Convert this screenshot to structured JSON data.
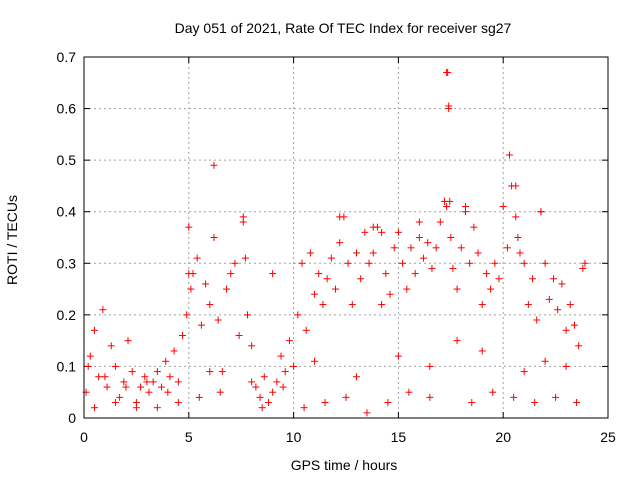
{
  "chart_data": {
    "type": "scatter",
    "title": "Day 051 of 2021, Rate Of TEC Index for receiver sg27",
    "xlabel": "GPS time / hours",
    "ylabel": "ROTI / TECUs",
    "xlim": [
      0,
      25
    ],
    "ylim": [
      0,
      0.7
    ],
    "xticks": [
      "0",
      "5",
      "10",
      "15",
      "20",
      "25"
    ],
    "yticks": [
      "0",
      "0.1",
      "0.2",
      "0.3",
      "0.4",
      "0.5",
      "0.6",
      "0.7"
    ],
    "grid": true,
    "marker": "plus",
    "color": "#ff0000",
    "series": [
      {
        "name": "ROTI",
        "x": [
          0.1,
          0.3,
          0.5,
          0.7,
          0.9,
          1.1,
          1.3,
          1.5,
          1.7,
          1.9,
          2.1,
          2.3,
          2.5,
          2.7,
          2.9,
          3.1,
          3.3,
          3.5,
          3.7,
          3.9,
          4.1,
          4.3,
          4.5,
          4.7,
          4.9,
          5.0,
          5.1,
          5.2,
          5.4,
          5.6,
          5.8,
          6.0,
          6.2,
          6.4,
          6.6,
          6.8,
          7.0,
          7.2,
          7.4,
          7.6,
          7.7,
          7.8,
          8.0,
          8.2,
          8.4,
          8.6,
          8.8,
          9.0,
          9.2,
          9.4,
          9.6,
          9.8,
          10.0,
          10.2,
          10.4,
          10.6,
          10.8,
          11.0,
          11.2,
          11.4,
          11.6,
          11.8,
          12.0,
          12.2,
          12.4,
          12.6,
          12.8,
          13.0,
          13.2,
          13.4,
          13.6,
          13.8,
          14.0,
          14.2,
          14.4,
          14.6,
          14.8,
          15.0,
          15.2,
          15.4,
          15.6,
          15.8,
          16.0,
          16.2,
          16.4,
          16.6,
          16.8,
          17.0,
          17.2,
          17.3,
          17.4,
          17.5,
          17.6,
          17.8,
          18.0,
          18.2,
          18.4,
          18.6,
          18.8,
          19.0,
          19.2,
          19.4,
          19.6,
          19.8,
          20.0,
          20.2,
          20.4,
          20.6,
          20.8,
          21.0,
          21.2,
          21.4,
          21.6,
          21.8,
          22.0,
          22.2,
          22.4,
          22.6,
          22.8,
          23.0,
          23.2,
          23.4,
          23.6,
          23.8,
          5.0,
          6.2,
          7.6,
          9.0,
          12.2,
          13.8,
          14.2,
          16.0,
          17.3,
          17.35,
          17.4,
          17.45,
          18.2,
          20.3,
          20.6,
          20.7,
          21.8,
          23.9,
          0.5,
          1.5,
          2.5,
          3.5,
          4.5,
          5.5,
          6.5,
          8.5,
          10.5,
          11.5,
          12.5,
          13.5,
          14.5,
          15.5,
          16.5,
          18.5,
          19.5,
          20.5,
          21.5,
          22.5,
          23.5,
          0.2,
          1.0,
          2.0,
          3.0,
          4.0,
          6.0,
          8.0,
          9.5,
          11.0,
          13.0,
          15.0,
          16.5,
          17.8,
          19.0,
          21.0,
          22.0,
          23.0
        ],
        "y": [
          0.05,
          0.12,
          0.17,
          0.08,
          0.21,
          0.06,
          0.14,
          0.1,
          0.04,
          0.07,
          0.15,
          0.09,
          0.03,
          0.06,
          0.08,
          0.05,
          0.07,
          0.09,
          0.06,
          0.11,
          0.08,
          0.13,
          0.07,
          0.16,
          0.2,
          0.37,
          0.25,
          0.28,
          0.31,
          0.18,
          0.26,
          0.22,
          0.35,
          0.19,
          0.09,
          0.25,
          0.28,
          0.3,
          0.16,
          0.39,
          0.31,
          0.2,
          0.14,
          0.06,
          0.04,
          0.08,
          0.03,
          0.05,
          0.07,
          0.12,
          0.09,
          0.15,
          0.1,
          0.2,
          0.3,
          0.17,
          0.32,
          0.24,
          0.28,
          0.22,
          0.27,
          0.31,
          0.25,
          0.34,
          0.39,
          0.3,
          0.22,
          0.32,
          0.27,
          0.36,
          0.3,
          0.32,
          0.37,
          0.22,
          0.28,
          0.24,
          0.33,
          0.36,
          0.3,
          0.25,
          0.33,
          0.28,
          0.38,
          0.31,
          0.34,
          0.29,
          0.33,
          0.38,
          0.42,
          0.67,
          0.6,
          0.35,
          0.29,
          0.25,
          0.33,
          0.41,
          0.3,
          0.37,
          0.32,
          0.22,
          0.28,
          0.25,
          0.3,
          0.27,
          0.41,
          0.33,
          0.45,
          0.39,
          0.32,
          0.3,
          0.22,
          0.27,
          0.19,
          0.4,
          0.3,
          0.23,
          0.27,
          0.21,
          0.26,
          0.17,
          0.22,
          0.18,
          0.14,
          0.29,
          0.28,
          0.49,
          0.38,
          0.28,
          0.39,
          0.37,
          0.36,
          0.35,
          0.41,
          0.67,
          0.605,
          0.42,
          0.4,
          0.51,
          0.45,
          0.35,
          0.4,
          0.3,
          0.02,
          0.03,
          0.02,
          0.02,
          0.03,
          0.04,
          0.05,
          0.02,
          0.02,
          0.03,
          0.04,
          0.01,
          0.03,
          0.05,
          0.04,
          0.03,
          0.05,
          0.04,
          0.03,
          0.04,
          0.03,
          0.1,
          0.08,
          0.06,
          0.07,
          0.05,
          0.09,
          0.07,
          0.06,
          0.11,
          0.08,
          0.12,
          0.1,
          0.15,
          0.13,
          0.09,
          0.11,
          0.1
        ]
      }
    ]
  }
}
